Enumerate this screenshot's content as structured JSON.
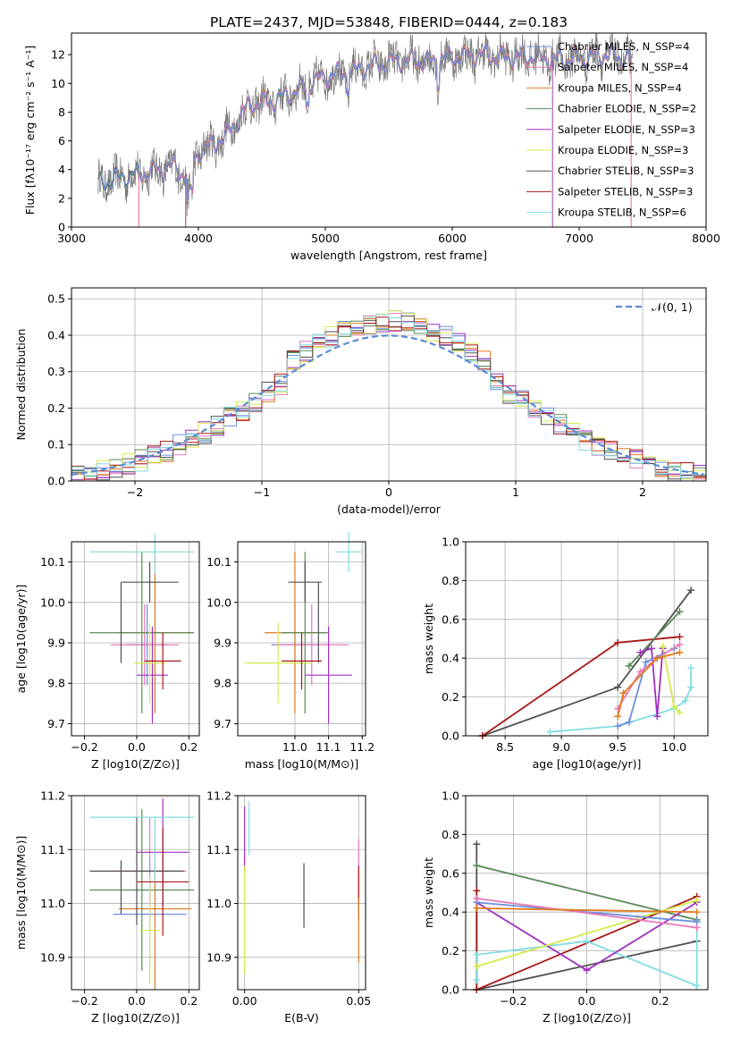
{
  "figure_title": "PLATE=2437, MJD=53848, FIBERID=0444, z=0.183",
  "series_colors": {
    "Chabrier MILES": "#6b8fe0",
    "Salpeter MILES": "#e87ab8",
    "Kroupa MILES": "#e07a1e",
    "Chabrier ELODIE": "#5a8a5a",
    "Salpeter ELODIE": "#a030c0",
    "Kroupa ELODIE": "#d4ea4a",
    "Chabrier STELIB": "#505050",
    "Salpeter STELIB": "#a81818",
    "Kroupa STELIB": "#80dce0",
    "data": "#777777"
  },
  "chart_data": [
    {
      "id": "spectrum",
      "type": "line",
      "xlabel": "wavelength [Angstrom, rest frame]",
      "ylabel": "Flux [fλ10⁻¹⁷ erg cm⁻² s⁻¹ A⁻¹]",
      "xlim": [
        3000,
        8000
      ],
      "ylim": [
        0,
        13.5
      ],
      "xticks": [
        "3000",
        "4000",
        "5000",
        "6000",
        "7000",
        "8000"
      ],
      "yticks": [
        "0",
        "2",
        "4",
        "6",
        "8",
        "10",
        "12"
      ],
      "grid": false,
      "legend_position": "right",
      "legend": [
        "Chabrier MILES, N_SSP=4",
        "Salpeter MILES, N_SSP=4",
        "Kroupa MILES, N_SSP=4",
        "Chabrier ELODIE, N_SSP=2",
        "Salpeter ELODIE, N_SSP=3",
        "Kroupa ELODIE, N_SSP=3",
        "Chabrier STELIB, N_SSP=3",
        "Salpeter STELIB, N_SSP=3",
        "Kroupa STELIB, N_SSP=6"
      ],
      "continuum": {
        "x": [
          3210,
          3400,
          3600,
          3800,
          3900,
          4000,
          4200,
          4400,
          4600,
          4800,
          5000,
          5200,
          5400,
          5600,
          5800,
          6000,
          6200,
          6400,
          6600,
          6800,
          7000,
          7200,
          7400
        ],
        "y": [
          3.0,
          3.5,
          3.8,
          4.2,
          3.6,
          5.2,
          6.2,
          8.5,
          8.8,
          9.6,
          10.5,
          10.8,
          11.3,
          11.6,
          11.5,
          11.8,
          12.0,
          11.8,
          11.9,
          11.6,
          11.8,
          12.0,
          11.7
        ]
      },
      "model_cutoffs": [
        {
          "name": "Salpeter MILES",
          "start": 3530,
          "end": 7410
        },
        {
          "name": "Kroupa MILES",
          "start": 3530,
          "end": 7410
        },
        {
          "name": "Kroupa ELODIE",
          "start": 3900,
          "end": 6790
        },
        {
          "name": "Salpeter ELODIE",
          "start": 3900,
          "end": 6790
        }
      ]
    },
    {
      "id": "residuals",
      "type": "histogram",
      "xlabel": "(data-model)/error",
      "ylabel": "Normed distribution",
      "xlim": [
        -2.5,
        2.5
      ],
      "ylim": [
        0,
        0.53
      ],
      "xticks": [
        "−2",
        "−1",
        "0",
        "1",
        "2"
      ],
      "yticks": [
        "0.0",
        "0.1",
        "0.2",
        "0.3",
        "0.4",
        "0.5"
      ],
      "grid": true,
      "legend_position": "top-right",
      "legend": [
        "𝒩(0, 1)"
      ],
      "bin_width": 0.1,
      "normal": {
        "mean": 0,
        "sigma": 1
      }
    },
    {
      "id": "age_vs_Z",
      "type": "errorbar",
      "xlabel": "Z [log10(Z/Z⊙)]",
      "ylabel": "age  [log10(age/yr)]",
      "xlim": [
        -0.25,
        0.24
      ],
      "ylim": [
        9.67,
        10.15
      ],
      "xticks": [
        "−0.2",
        "0.0",
        "0.2"
      ],
      "yticks": [
        "9.7",
        "9.8",
        "9.9",
        "10.0",
        "10.1"
      ],
      "grid": true,
      "points": [
        {
          "series": "Chabrier MILES",
          "x": 0.04,
          "xerr": 0.08,
          "y": 9.895,
          "yerr": 0.1
        },
        {
          "series": "Salpeter MILES",
          "x": 0.03,
          "xerr": 0.13,
          "y": 9.895,
          "yerr": 0.1
        },
        {
          "series": "Kroupa MILES",
          "x": 0.07,
          "xerr": 0.14,
          "y": 9.925,
          "yerr": 0.2
        },
        {
          "series": "Chabrier ELODIE",
          "x": 0.02,
          "xerr": 0.2,
          "y": 9.925,
          "yerr": 0.2
        },
        {
          "series": "Salpeter ELODIE",
          "x": 0.06,
          "xerr": 0.06,
          "y": 9.82,
          "yerr": 0.12
        },
        {
          "series": "Kroupa ELODIE",
          "x": 0.05,
          "xerr": 0.06,
          "y": 9.85,
          "yerr": 0.1
        },
        {
          "series": "Chabrier STELIB",
          "x": -0.06,
          "xerr": 0.0,
          "y": 9.95,
          "yerr": 0.1
        },
        {
          "series": "Chabrier STELIB",
          "x": 0.05,
          "xerr": 0.11,
          "y": 10.05,
          "yerr": 0.05
        },
        {
          "series": "Salpeter STELIB",
          "x": 0.1,
          "xerr": 0.07,
          "y": 9.855,
          "yerr": 0.07
        },
        {
          "series": "Kroupa STELIB",
          "x": 0.02,
          "xerr": 0.2,
          "y": 10.125,
          "yerr": 0.0
        },
        {
          "series": "Kroupa STELIB",
          "x": 0.07,
          "xerr": 0.0,
          "y": 10.12,
          "yerr": 0.05
        }
      ]
    },
    {
      "id": "age_vs_mass",
      "type": "errorbar",
      "xlabel": "mass [log10(M/M⊙)]",
      "ylabel": "",
      "xlim": [
        10.83,
        11.21
      ],
      "ylim": [
        9.67,
        10.15
      ],
      "xticks": [
        "11.0",
        "11.1",
        "11.2"
      ],
      "yticks": [
        "9.7",
        "9.8",
        "9.9",
        "10.0",
        "10.1"
      ],
      "grid": true,
      "points": [
        {
          "series": "Chabrier MILES",
          "x": 11.0,
          "xerr": 0.07,
          "y": 9.895,
          "yerr": 0.1
        },
        {
          "series": "Salpeter MILES",
          "x": 11.05,
          "xerr": 0.11,
          "y": 9.895,
          "yerr": 0.1
        },
        {
          "series": "Kroupa MILES",
          "x": 11.0,
          "xerr": 0.09,
          "y": 9.925,
          "yerr": 0.2
        },
        {
          "series": "Chabrier ELODIE",
          "x": 11.03,
          "xerr": 0.07,
          "y": 9.925,
          "yerr": 0.2
        },
        {
          "series": "Salpeter ELODIE",
          "x": 11.1,
          "xerr": 0.07,
          "y": 9.82,
          "yerr": 0.12
        },
        {
          "series": "Kroupa ELODIE",
          "x": 10.95,
          "xerr": 0.1,
          "y": 9.85,
          "yerr": 0.1
        },
        {
          "series": "Chabrier STELIB",
          "x": 11.03,
          "xerr": 0.05,
          "y": 10.05,
          "yerr": 0.05
        },
        {
          "series": "Chabrier STELIB",
          "x": 11.07,
          "xerr": 0.0,
          "y": 9.95,
          "yerr": 0.1
        },
        {
          "series": "Salpeter STELIB",
          "x": 11.02,
          "xerr": 0.06,
          "y": 9.855,
          "yerr": 0.07
        },
        {
          "series": "Kroupa STELIB",
          "x": 11.16,
          "xerr": 0.04,
          "y": 10.125,
          "yerr": 0.05
        }
      ]
    },
    {
      "id": "massweight_vs_age",
      "type": "line",
      "xlabel": "age  [log10(age/yr)]",
      "ylabel": "mass weight",
      "xlim": [
        8.15,
        10.3
      ],
      "ylim": [
        0,
        1.0
      ],
      "xticks": [
        "8.5",
        "9.0",
        "9.5",
        "10.0"
      ],
      "yticks": [
        "0.0",
        "0.2",
        "0.4",
        "0.6",
        "0.8",
        "1.0"
      ],
      "grid": true,
      "series": [
        {
          "name": "Chabrier STELIB",
          "x": [
            8.3,
            9.5,
            10.15
          ],
          "y": [
            0.0,
            0.25,
            0.75
          ]
        },
        {
          "name": "Salpeter STELIB",
          "x": [
            8.3,
            9.5,
            10.05
          ],
          "y": [
            0.0,
            0.48,
            0.51
          ]
        },
        {
          "name": "Chabrier ELODIE",
          "x": [
            9.6,
            10.05
          ],
          "y": [
            0.36,
            0.64
          ]
        },
        {
          "name": "Kroupa STELIB",
          "x": [
            8.9,
            9.5,
            10.0,
            10.1,
            10.15,
            10.15
          ],
          "y": [
            0.02,
            0.05,
            0.14,
            0.18,
            0.25,
            0.35
          ]
        },
        {
          "name": "Salpeter ELODIE",
          "x": [
            9.7,
            9.8,
            9.85,
            9.9
          ],
          "y": [
            0.43,
            0.45,
            0.1,
            0.45
          ]
        },
        {
          "name": "Kroupa ELODIE",
          "x": [
            9.9,
            10.0,
            10.05
          ],
          "y": [
            0.46,
            0.15,
            0.12
          ]
        },
        {
          "name": "Chabrier MILES",
          "x": [
            9.5,
            9.6,
            9.75,
            10.0
          ],
          "y": [
            0.05,
            0.07,
            0.38,
            0.45
          ]
        },
        {
          "name": "Salpeter MILES",
          "x": [
            9.5,
            9.7,
            9.85,
            10.05
          ],
          "y": [
            0.14,
            0.33,
            0.4,
            0.47
          ]
        },
        {
          "name": "Kroupa MILES",
          "x": [
            9.5,
            9.55,
            9.85,
            10.05
          ],
          "y": [
            0.1,
            0.22,
            0.4,
            0.43
          ]
        }
      ]
    },
    {
      "id": "mass_vs_Z",
      "type": "errorbar",
      "xlabel": "Z [log10(Z/Z⊙)]",
      "ylabel": "mass [log10(M/M⊙)]",
      "xlim": [
        -0.25,
        0.24
      ],
      "ylim": [
        10.84,
        11.2
      ],
      "xticks": [
        "−0.2",
        "0.0",
        "0.2"
      ],
      "yticks": [
        "10.9",
        "11.0",
        "11.1",
        "11.2"
      ],
      "grid": true,
      "points": [
        {
          "series": "Chabrier MILES",
          "x": 0.05,
          "xerr": 0.14,
          "y": 10.98,
          "yerr": 0.1
        },
        {
          "series": "Salpeter MILES",
          "x": 0.05,
          "xerr": 0.14,
          "y": 11.06,
          "yerr": 0.1
        },
        {
          "series": "Kroupa MILES",
          "x": 0.07,
          "xerr": 0.14,
          "y": 10.99,
          "yerr": 0.15
        },
        {
          "series": "Chabrier ELODIE",
          "x": 0.02,
          "xerr": 0.2,
          "y": 11.025,
          "yerr": 0.15
        },
        {
          "series": "Salpeter ELODIE",
          "x": 0.1,
          "xerr": 0.1,
          "y": 11.095,
          "yerr": 0.1
        },
        {
          "series": "Kroupa ELODIE",
          "x": 0.05,
          "xerr": 0.04,
          "y": 10.95,
          "yerr": 0.1
        },
        {
          "series": "Chabrier STELIB",
          "x": 0.0,
          "xerr": 0.18,
          "y": 11.06,
          "yerr": 0.1
        },
        {
          "series": "Chabrier STELIB",
          "x": -0.06,
          "xerr": 0.0,
          "y": 11.03,
          "yerr": 0.05
        },
        {
          "series": "Salpeter STELIB",
          "x": 0.1,
          "xerr": 0.1,
          "y": 11.04,
          "yerr": 0.1
        },
        {
          "series": "Kroupa STELIB",
          "x": 0.02,
          "xerr": 0.2,
          "y": 11.16,
          "yerr": 0.0
        },
        {
          "series": "Kroupa STELIB",
          "x": 0.07,
          "xerr": 0.0,
          "y": 11.1,
          "yerr": 0.06
        }
      ]
    },
    {
      "id": "mass_vs_EBV",
      "type": "errorbar",
      "xlabel": "E(B-V)",
      "ylabel": "",
      "xlim": [
        -0.003,
        0.053
      ],
      "ylim": [
        10.84,
        11.2
      ],
      "xticks": [
        "0.00",
        "0.05"
      ],
      "yticks": [
        "10.9",
        "11.0",
        "11.1",
        "11.2"
      ],
      "grid": true,
      "points": [
        {
          "series": "Salpeter ELODIE",
          "x": 0.0,
          "xerr": 0.0,
          "y": 11.12,
          "yerr": 0.06
        },
        {
          "series": "Kroupa ELODIE",
          "x": 0.0,
          "xerr": 0.0,
          "y": 10.97,
          "yerr": 0.1
        },
        {
          "series": "Kroupa STELIB",
          "x": 0.002,
          "xerr": 0.0,
          "y": 11.14,
          "yerr": 0.05
        },
        {
          "series": "Chabrier STELIB",
          "x": 0.026,
          "xerr": 0.0,
          "y": 11.015,
          "yerr": 0.06
        },
        {
          "series": "Salpeter MILES",
          "x": 0.05,
          "xerr": 0.0,
          "y": 11.06,
          "yerr": 0.06
        },
        {
          "series": "Salpeter STELIB",
          "x": 0.05,
          "xerr": 0.0,
          "y": 11.02,
          "yerr": 0.05
        },
        {
          "series": "Kroupa MILES",
          "x": 0.05,
          "xerr": 0.0,
          "y": 10.95,
          "yerr": 0.06
        }
      ]
    },
    {
      "id": "massweight_vs_Z",
      "type": "line",
      "xlabel": "Z [log10(Z/Z⊙)]",
      "ylabel": "mass weight",
      "xlim": [
        -0.33,
        0.33
      ],
      "ylim": [
        0,
        1.0
      ],
      "xticks": [
        "−0.2",
        "0.0",
        "0.2"
      ],
      "yticks": [
        "0.0",
        "0.2",
        "0.4",
        "0.6",
        "0.8",
        "1.0"
      ],
      "grid": true,
      "series": [
        {
          "name": "Chabrier STELIB",
          "x": [
            -0.3,
            -0.3,
            0.3
          ],
          "y": [
            0.75,
            0.0,
            0.25
          ]
        },
        {
          "name": "Salpeter STELIB",
          "x": [
            -0.3,
            -0.3,
            0.3
          ],
          "y": [
            0.51,
            0.0,
            0.48
          ]
        },
        {
          "name": "Chabrier ELODIE",
          "x": [
            -0.3,
            0.3
          ],
          "y": [
            0.64,
            0.36
          ]
        },
        {
          "name": "Kroupa STELIB",
          "x": [
            -0.3,
            -0.3,
            0.0,
            0.3,
            0.3
          ],
          "y": [
            0.05,
            0.18,
            0.25,
            0.02,
            0.35
          ]
        },
        {
          "name": "Salpeter ELODIE",
          "x": [
            -0.3,
            0.0,
            0.3
          ],
          "y": [
            0.45,
            0.1,
            0.45
          ]
        },
        {
          "name": "Kroupa ELODIE",
          "x": [
            -0.3,
            0.3
          ],
          "y": [
            0.12,
            0.46
          ]
        },
        {
          "name": "Chabrier MILES",
          "x": [
            -0.3,
            0.3
          ],
          "y": [
            0.45,
            0.35
          ]
        },
        {
          "name": "Salpeter MILES",
          "x": [
            -0.3,
            0.3
          ],
          "y": [
            0.47,
            0.32
          ]
        },
        {
          "name": "Kroupa MILES",
          "x": [
            -0.3,
            0.3
          ],
          "y": [
            0.42,
            0.4
          ]
        }
      ]
    }
  ]
}
